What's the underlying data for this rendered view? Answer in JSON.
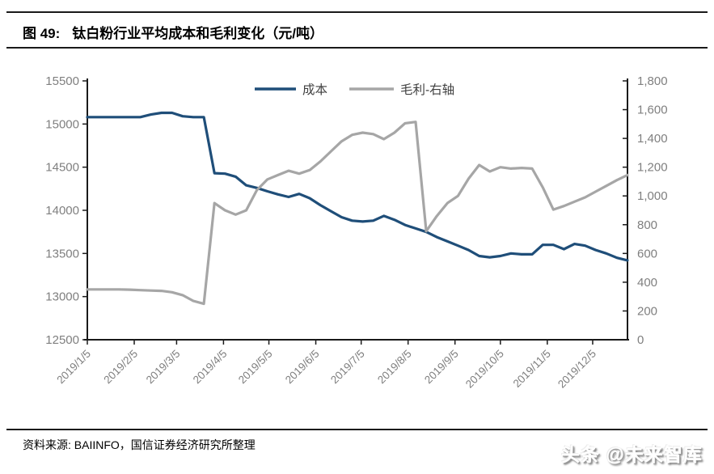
{
  "header": {
    "figure_label": "图 49:",
    "title": "钛白粉行业平均成本和毛利变化（元/吨）"
  },
  "footer": {
    "source": "资料来源: BAIINFO，国信证券经济研究所整理",
    "watermark": "头条 @未来智库"
  },
  "colors": {
    "cost_line": "#1f4e79",
    "profit_line": "#a6a6a6",
    "axis_line": "#1a1a1a",
    "tick_text": "#7f7f7f",
    "legend_text": "#404040",
    "rule": "#1a1a1a"
  },
  "chart_data": {
    "type": "line",
    "title": "钛白粉行业平均成本和毛利变化（元/吨）",
    "grid": false,
    "legend": {
      "position": "top-center",
      "entries": [
        "成本",
        "毛利-右轴"
      ]
    },
    "x": [
      "2019/1/5",
      "2019/1/12",
      "2019/1/19",
      "2019/1/26",
      "2019/2/2",
      "2019/2/9",
      "2019/2/16",
      "2019/2/23",
      "2019/3/2",
      "2019/3/9",
      "2019/3/16",
      "2019/3/23",
      "2019/3/30",
      "2019/4/6",
      "2019/4/13",
      "2019/4/20",
      "2019/4/27",
      "2019/5/4",
      "2019/5/11",
      "2019/5/18",
      "2019/5/25",
      "2019/6/1",
      "2019/6/8",
      "2019/6/15",
      "2019/6/22",
      "2019/6/29",
      "2019/7/6",
      "2019/7/13",
      "2019/7/20",
      "2019/7/27",
      "2019/8/3",
      "2019/8/10",
      "2019/8/17",
      "2019/8/24",
      "2019/8/31",
      "2019/9/7",
      "2019/9/14",
      "2019/9/21",
      "2019/9/28",
      "2019/10/5",
      "2019/10/12",
      "2019/10/19",
      "2019/10/26",
      "2019/11/2",
      "2019/11/9",
      "2019/11/16",
      "2019/11/23",
      "2019/11/30",
      "2019/12/7",
      "2019/12/14",
      "2019/12/21",
      "2019/12/28"
    ],
    "series": [
      {
        "name": "成本",
        "axis": "left",
        "color": "#1f4e79",
        "values": [
          15080,
          15080,
          15080,
          15080,
          15080,
          15080,
          15110,
          15130,
          15130,
          15090,
          15080,
          15080,
          14430,
          14425,
          14390,
          14290,
          14260,
          14220,
          14185,
          14155,
          14190,
          14140,
          14060,
          13990,
          13920,
          13880,
          13870,
          13880,
          13935,
          13890,
          13830,
          13790,
          13750,
          13690,
          13640,
          13590,
          13540,
          13470,
          13455,
          13470,
          13500,
          13490,
          13490,
          13600,
          13600,
          13550,
          13610,
          13590,
          13540,
          13500,
          13450,
          13420
        ]
      },
      {
        "name": "毛利-右轴",
        "axis": "right",
        "color": "#a6a6a6",
        "values": [
          350,
          350,
          350,
          350,
          348,
          345,
          342,
          340,
          330,
          310,
          270,
          250,
          950,
          900,
          870,
          900,
          1040,
          1115,
          1145,
          1175,
          1155,
          1180,
          1240,
          1310,
          1380,
          1425,
          1440,
          1430,
          1395,
          1440,
          1505,
          1515,
          755,
          860,
          950,
          1000,
          1120,
          1215,
          1170,
          1200,
          1190,
          1195,
          1190,
          1060,
          905,
          930,
          960,
          990,
          1030,
          1070,
          1110,
          1145
        ]
      }
    ],
    "left_axis": {
      "min": 12500,
      "max": 15500,
      "step": 500,
      "labels": [
        "12500",
        "13000",
        "13500",
        "14000",
        "14500",
        "15000",
        "15500"
      ]
    },
    "right_axis": {
      "min": 0,
      "max": 1800,
      "step": 200,
      "labels": [
        "0",
        "200",
        "400",
        "600",
        "800",
        "1,000",
        "1,200",
        "1,400",
        "1,600",
        "1,800"
      ]
    },
    "x_tick_labels": [
      "2019/1/5",
      "2019/2/5",
      "2019/3/5",
      "2019/4/5",
      "2019/5/5",
      "2019/6/5",
      "2019/7/5",
      "2019/8/5",
      "2019/9/5",
      "2019/10/5",
      "2019/11/5",
      "2019/12/5"
    ]
  }
}
